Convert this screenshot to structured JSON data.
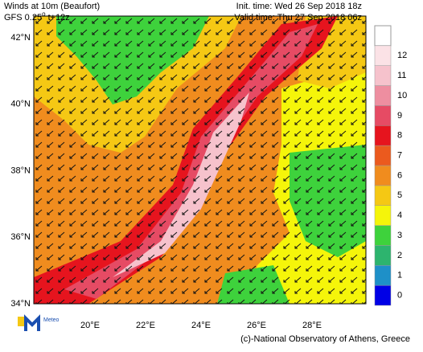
{
  "header": {
    "title": "Winds at 10m (Beaufort)",
    "model": "GFS 0.25",
    "model_degree": "o",
    "model_step": " t+12z",
    "init_time": "Init. time: Wed 26 Sep 2018 18z",
    "valid_time": "Valid time: Thu 27 Sep 2018 06z"
  },
  "map": {
    "lat_labels": [
      "42°N",
      "40°N",
      "38°N",
      "36°N",
      "34°N"
    ],
    "lon_labels": [
      "20°E",
      "22°E",
      "24°E",
      "26°E",
      "28°E"
    ]
  },
  "legend": {
    "labels": [
      0,
      1,
      2,
      3,
      4,
      5,
      6,
      7,
      8,
      9,
      10,
      11,
      12
    ],
    "colors": [
      "#0000e6",
      "#1e90c8",
      "#2db46e",
      "#3ed23c",
      "#f5f50a",
      "#f5c814",
      "#f08c1e",
      "#eb5a1e",
      "#e6141e",
      "#e64b64",
      "#ee8ea0",
      "#f6c2cc",
      "#fbe2e6"
    ]
  },
  "footer": {
    "logo": "Meteo",
    "credit": "(c)-National Observatory of Athens, Greece"
  }
}
